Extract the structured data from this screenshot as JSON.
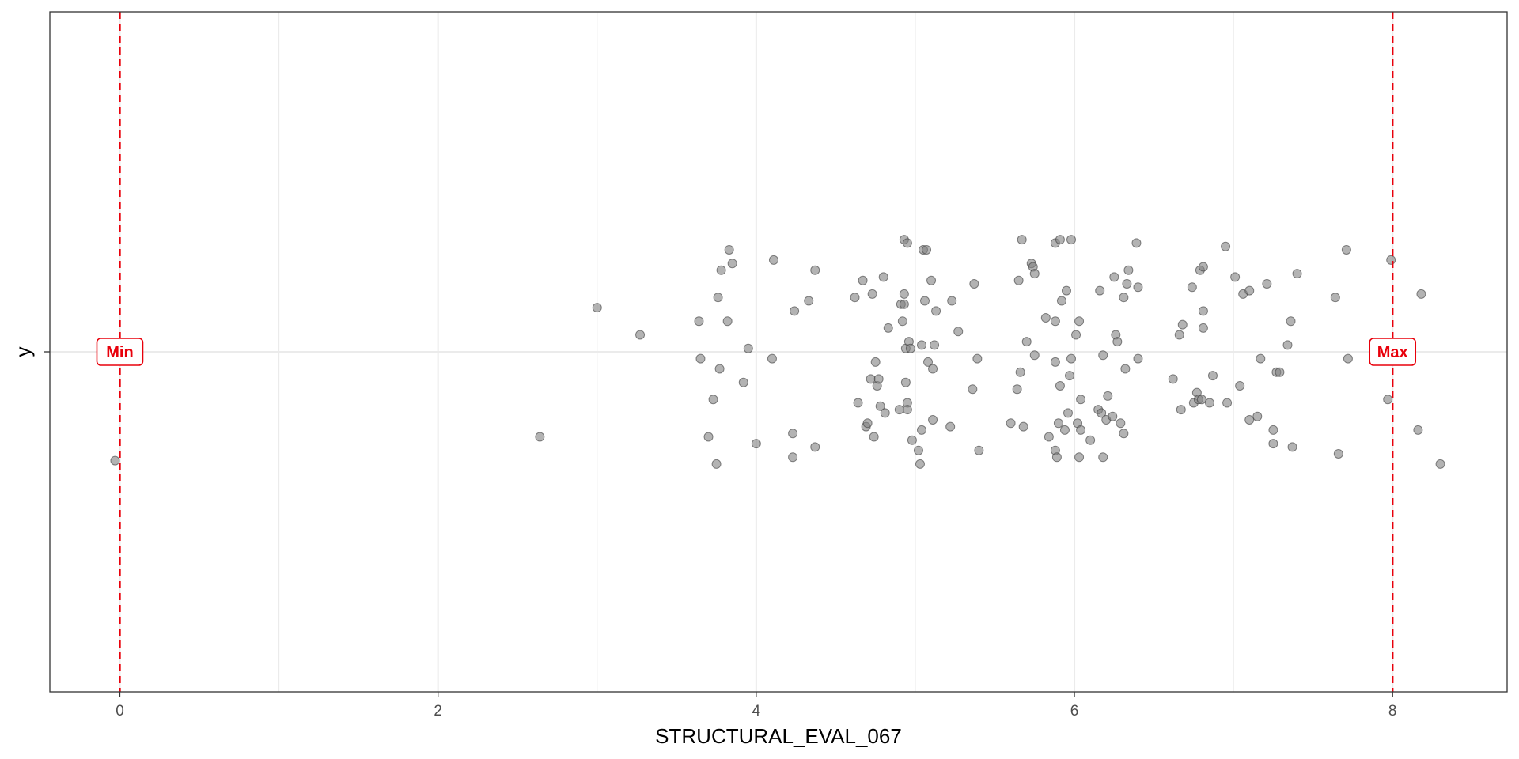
{
  "chart_data": {
    "type": "scatter",
    "xlabel": "STRUCTURAL_EVAL_067",
    "ylabel": "y",
    "xlim": [
      -0.44,
      8.72
    ],
    "x_ticks": [
      0,
      2,
      4,
      6,
      8
    ],
    "x_tick_labels": [
      "0",
      "2",
      "4",
      "6",
      "8"
    ],
    "y_tick_labels": [
      ""
    ],
    "grid": true,
    "point_color": "#808080",
    "reference_color": "#e8000b",
    "reference_lines": [
      {
        "name": "min-line",
        "x": 0,
        "label": "Min"
      },
      {
        "name": "max-line",
        "x": 8,
        "label": "Max"
      }
    ],
    "points": [
      {
        "x": -0.03,
        "y": -0.32
      },
      {
        "x": 2.64,
        "y": -0.25
      },
      {
        "x": 3.0,
        "y": 0.13
      },
      {
        "x": 3.27,
        "y": 0.05
      },
      {
        "x": 3.64,
        "y": 0.09
      },
      {
        "x": 3.65,
        "y": -0.02
      },
      {
        "x": 3.7,
        "y": -0.25
      },
      {
        "x": 3.73,
        "y": -0.14
      },
      {
        "x": 3.75,
        "y": -0.33
      },
      {
        "x": 3.76,
        "y": 0.16
      },
      {
        "x": 3.77,
        "y": -0.05
      },
      {
        "x": 3.78,
        "y": 0.24
      },
      {
        "x": 3.82,
        "y": 0.09
      },
      {
        "x": 3.83,
        "y": 0.3
      },
      {
        "x": 3.85,
        "y": 0.26
      },
      {
        "x": 3.92,
        "y": -0.09
      },
      {
        "x": 3.95,
        "y": 0.01
      },
      {
        "x": 4.0,
        "y": -0.27
      },
      {
        "x": 4.1,
        "y": -0.02
      },
      {
        "x": 4.11,
        "y": 0.27
      },
      {
        "x": 4.23,
        "y": -0.31
      },
      {
        "x": 4.23,
        "y": -0.24
      },
      {
        "x": 4.24,
        "y": 0.12
      },
      {
        "x": 4.33,
        "y": 0.15
      },
      {
        "x": 4.37,
        "y": -0.28
      },
      {
        "x": 4.37,
        "y": 0.24
      },
      {
        "x": 4.62,
        "y": 0.16
      },
      {
        "x": 4.64,
        "y": -0.15
      },
      {
        "x": 4.67,
        "y": 0.21
      },
      {
        "x": 4.69,
        "y": -0.22
      },
      {
        "x": 4.7,
        "y": -0.21
      },
      {
        "x": 4.72,
        "y": -0.08
      },
      {
        "x": 4.73,
        "y": 0.17
      },
      {
        "x": 4.74,
        "y": -0.25
      },
      {
        "x": 4.75,
        "y": -0.03
      },
      {
        "x": 4.76,
        "y": -0.1
      },
      {
        "x": 4.77,
        "y": -0.08
      },
      {
        "x": 4.78,
        "y": -0.16
      },
      {
        "x": 4.8,
        "y": 0.22
      },
      {
        "x": 4.81,
        "y": -0.18
      },
      {
        "x": 4.83,
        "y": 0.07
      },
      {
        "x": 4.9,
        "y": -0.17
      },
      {
        "x": 4.91,
        "y": 0.14
      },
      {
        "x": 4.92,
        "y": 0.09
      },
      {
        "x": 4.93,
        "y": 0.33
      },
      {
        "x": 4.93,
        "y": 0.17
      },
      {
        "x": 4.93,
        "y": 0.14
      },
      {
        "x": 4.94,
        "y": -0.09
      },
      {
        "x": 4.94,
        "y": 0.01
      },
      {
        "x": 4.95,
        "y": 0.32
      },
      {
        "x": 4.95,
        "y": -0.15
      },
      {
        "x": 4.95,
        "y": -0.17
      },
      {
        "x": 4.96,
        "y": 0.03
      },
      {
        "x": 4.97,
        "y": 0.01
      },
      {
        "x": 4.98,
        "y": -0.26
      },
      {
        "x": 5.02,
        "y": -0.29
      },
      {
        "x": 5.03,
        "y": -0.33
      },
      {
        "x": 5.04,
        "y": -0.23
      },
      {
        "x": 5.04,
        "y": 0.02
      },
      {
        "x": 5.05,
        "y": 0.3
      },
      {
        "x": 5.06,
        "y": 0.15
      },
      {
        "x": 5.07,
        "y": 0.3
      },
      {
        "x": 5.08,
        "y": -0.03
      },
      {
        "x": 5.1,
        "y": 0.21
      },
      {
        "x": 5.11,
        "y": -0.05
      },
      {
        "x": 5.11,
        "y": -0.2
      },
      {
        "x": 5.12,
        "y": 0.02
      },
      {
        "x": 5.13,
        "y": 0.12
      },
      {
        "x": 5.22,
        "y": -0.22
      },
      {
        "x": 5.23,
        "y": 0.15
      },
      {
        "x": 5.27,
        "y": 0.06
      },
      {
        "x": 5.36,
        "y": -0.11
      },
      {
        "x": 5.37,
        "y": 0.2
      },
      {
        "x": 5.39,
        "y": -0.02
      },
      {
        "x": 5.4,
        "y": -0.29
      },
      {
        "x": 5.6,
        "y": -0.21
      },
      {
        "x": 5.64,
        "y": -0.11
      },
      {
        "x": 5.65,
        "y": 0.21
      },
      {
        "x": 5.66,
        "y": -0.06
      },
      {
        "x": 5.67,
        "y": 0.33
      },
      {
        "x": 5.68,
        "y": -0.22
      },
      {
        "x": 5.7,
        "y": 0.03
      },
      {
        "x": 5.73,
        "y": 0.26
      },
      {
        "x": 5.74,
        "y": 0.25
      },
      {
        "x": 5.75,
        "y": 0.23
      },
      {
        "x": 5.75,
        "y": -0.01
      },
      {
        "x": 5.82,
        "y": 0.1
      },
      {
        "x": 5.84,
        "y": -0.25
      },
      {
        "x": 5.88,
        "y": 0.09
      },
      {
        "x": 5.88,
        "y": -0.03
      },
      {
        "x": 5.88,
        "y": -0.29
      },
      {
        "x": 5.88,
        "y": 0.32
      },
      {
        "x": 5.89,
        "y": -0.31
      },
      {
        "x": 5.9,
        "y": -0.21
      },
      {
        "x": 5.91,
        "y": -0.1
      },
      {
        "x": 5.91,
        "y": 0.33
      },
      {
        "x": 5.92,
        "y": 0.15
      },
      {
        "x": 5.94,
        "y": -0.23
      },
      {
        "x": 5.95,
        "y": 0.18
      },
      {
        "x": 5.96,
        "y": -0.18
      },
      {
        "x": 5.97,
        "y": -0.07
      },
      {
        "x": 5.98,
        "y": -0.02
      },
      {
        "x": 5.98,
        "y": 0.33
      },
      {
        "x": 6.01,
        "y": 0.05
      },
      {
        "x": 6.02,
        "y": -0.21
      },
      {
        "x": 6.03,
        "y": -0.31
      },
      {
        "x": 6.03,
        "y": 0.09
      },
      {
        "x": 6.04,
        "y": -0.23
      },
      {
        "x": 6.04,
        "y": -0.14
      },
      {
        "x": 6.1,
        "y": -0.26
      },
      {
        "x": 6.15,
        "y": -0.17
      },
      {
        "x": 6.16,
        "y": 0.18
      },
      {
        "x": 6.17,
        "y": -0.18
      },
      {
        "x": 6.18,
        "y": -0.01
      },
      {
        "x": 6.18,
        "y": -0.31
      },
      {
        "x": 6.2,
        "y": -0.2
      },
      {
        "x": 6.21,
        "y": -0.13
      },
      {
        "x": 6.24,
        "y": -0.19
      },
      {
        "x": 6.25,
        "y": 0.22
      },
      {
        "x": 6.26,
        "y": 0.05
      },
      {
        "x": 6.27,
        "y": 0.03
      },
      {
        "x": 6.29,
        "y": -0.21
      },
      {
        "x": 6.31,
        "y": -0.24
      },
      {
        "x": 6.31,
        "y": 0.16
      },
      {
        "x": 6.32,
        "y": -0.05
      },
      {
        "x": 6.33,
        "y": 0.2
      },
      {
        "x": 6.34,
        "y": 0.24
      },
      {
        "x": 6.39,
        "y": 0.32
      },
      {
        "x": 6.4,
        "y": 0.19
      },
      {
        "x": 6.4,
        "y": -0.02
      },
      {
        "x": 6.62,
        "y": -0.08
      },
      {
        "x": 6.66,
        "y": 0.05
      },
      {
        "x": 6.67,
        "y": -0.17
      },
      {
        "x": 6.68,
        "y": 0.08
      },
      {
        "x": 6.74,
        "y": 0.19
      },
      {
        "x": 6.75,
        "y": -0.15
      },
      {
        "x": 6.77,
        "y": -0.12
      },
      {
        "x": 6.78,
        "y": -0.14
      },
      {
        "x": 6.79,
        "y": 0.24
      },
      {
        "x": 6.8,
        "y": -0.14
      },
      {
        "x": 6.81,
        "y": 0.25
      },
      {
        "x": 6.81,
        "y": 0.12
      },
      {
        "x": 6.81,
        "y": 0.07
      },
      {
        "x": 6.85,
        "y": -0.15
      },
      {
        "x": 6.87,
        "y": -0.07
      },
      {
        "x": 6.95,
        "y": 0.31
      },
      {
        "x": 6.96,
        "y": -0.15
      },
      {
        "x": 7.01,
        "y": 0.22
      },
      {
        "x": 7.04,
        "y": -0.1
      },
      {
        "x": 7.06,
        "y": 0.17
      },
      {
        "x": 7.1,
        "y": 0.18
      },
      {
        "x": 7.1,
        "y": -0.2
      },
      {
        "x": 7.15,
        "y": -0.19
      },
      {
        "x": 7.17,
        "y": -0.02
      },
      {
        "x": 7.21,
        "y": 0.2
      },
      {
        "x": 7.25,
        "y": -0.23
      },
      {
        "x": 7.25,
        "y": -0.27
      },
      {
        "x": 7.27,
        "y": -0.06
      },
      {
        "x": 7.29,
        "y": -0.06
      },
      {
        "x": 7.34,
        "y": 0.02
      },
      {
        "x": 7.36,
        "y": 0.09
      },
      {
        "x": 7.37,
        "y": -0.28
      },
      {
        "x": 7.4,
        "y": 0.23
      },
      {
        "x": 7.64,
        "y": 0.16
      },
      {
        "x": 7.66,
        "y": -0.3
      },
      {
        "x": 7.71,
        "y": 0.3
      },
      {
        "x": 7.72,
        "y": -0.02
      },
      {
        "x": 7.97,
        "y": -0.14
      },
      {
        "x": 7.99,
        "y": 0.27
      },
      {
        "x": 8.16,
        "y": -0.23
      },
      {
        "x": 8.18,
        "y": 0.17
      },
      {
        "x": 8.3,
        "y": -0.33
      }
    ]
  }
}
